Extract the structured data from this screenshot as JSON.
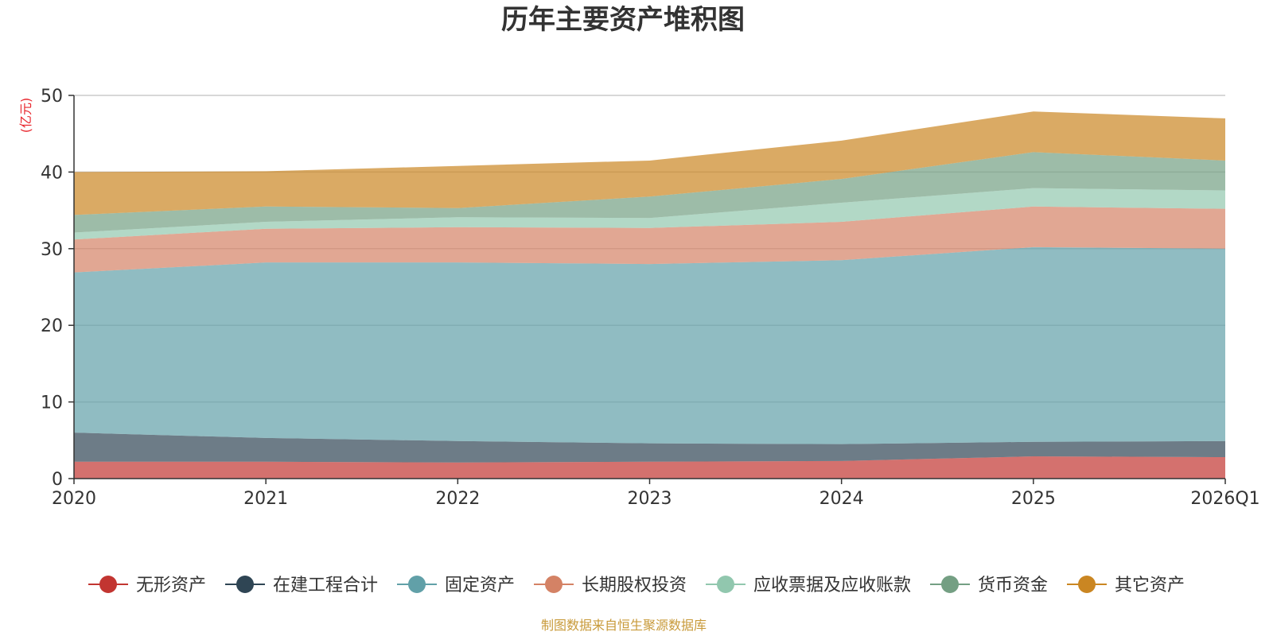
{
  "chart_data": {
    "type": "area",
    "stacked": true,
    "title": "历年主要资产堆积图",
    "unit_label": "(亿元)",
    "source": "制图数据来自恒生聚源数据库",
    "categories": [
      "2020",
      "2021",
      "2022",
      "2023",
      "2024",
      "2025",
      "2026Q1"
    ],
    "ylim": [
      0,
      50
    ],
    "yticks": [
      0,
      10,
      20,
      30,
      40,
      50
    ],
    "grid": true,
    "legend_position": "bottom",
    "series": [
      {
        "name": "无形资产",
        "color": "#c23531",
        "values": [
          2.2,
          2.2,
          2.1,
          2.2,
          2.3,
          2.9,
          2.8
        ]
      },
      {
        "name": "在建工程合计",
        "color": "#2f4554",
        "values": [
          3.8,
          3.1,
          2.8,
          2.4,
          2.2,
          1.9,
          2.1
        ]
      },
      {
        "name": "固定资产",
        "color": "#61a0a8",
        "values": [
          20.9,
          22.9,
          23.3,
          23.4,
          24.0,
          25.4,
          25.1
        ]
      },
      {
        "name": "长期股权投资",
        "color": "#d48265",
        "values": [
          4.3,
          4.4,
          4.6,
          4.7,
          5.0,
          5.3,
          5.2
        ]
      },
      {
        "name": "应收票据及应收账款",
        "color": "#91c7ae",
        "values": [
          0.9,
          0.9,
          1.3,
          1.3,
          2.5,
          2.4,
          2.4
        ]
      },
      {
        "name": "货币资金",
        "color": "#749f83",
        "values": [
          2.3,
          2.0,
          1.2,
          2.8,
          3.1,
          4.7,
          3.9
        ]
      },
      {
        "name": "其它资产",
        "color": "#ca8622",
        "values": [
          5.6,
          4.6,
          5.5,
          4.7,
          5.0,
          5.3,
          5.5
        ]
      }
    ]
  }
}
